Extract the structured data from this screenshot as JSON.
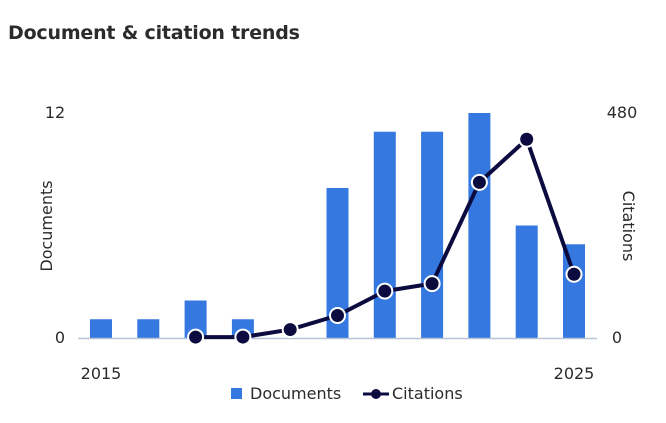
{
  "title": "Document & citation trends",
  "colors": {
    "documents": "#3478e0",
    "citations": "#0b0b3f",
    "axis": "#b8c4d6",
    "text": "#2b2b2b"
  },
  "chart_data": {
    "type": "bar",
    "x": [
      2015,
      2016,
      2017,
      2018,
      2019,
      2020,
      2021,
      2022,
      2023,
      2024,
      2025
    ],
    "x_tick_labels": [
      "2015",
      "2025"
    ],
    "series": [
      {
        "name": "Documents",
        "type": "bar",
        "axis": "left",
        "values": [
          1,
          1,
          2,
          1,
          0,
          8,
          11,
          11,
          12,
          6,
          5
        ]
      },
      {
        "name": "Citations",
        "type": "line",
        "axis": "right",
        "values": [
          null,
          null,
          2,
          2,
          18,
          48,
          100,
          116,
          332,
          424,
          136
        ]
      }
    ],
    "y_left": {
      "label": "Documents",
      "range": [
        0,
        12
      ],
      "ticks": [
        "0",
        "12"
      ]
    },
    "y_right": {
      "label": "Citations",
      "range": [
        0,
        480
      ],
      "ticks": [
        "0",
        "480"
      ]
    },
    "legend": {
      "placement": "bottom",
      "items": [
        "Documents",
        "Citations"
      ]
    },
    "grid": false
  }
}
